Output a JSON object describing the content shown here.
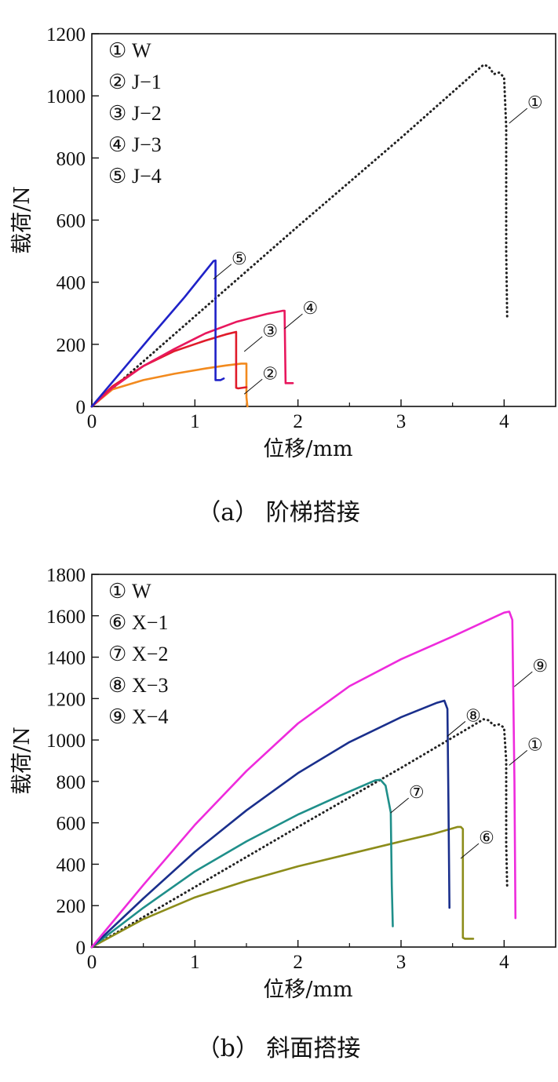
{
  "chart_data": [
    {
      "type": "line",
      "caption": "（a） 阶梯搭接",
      "xlabel": "位移/mm",
      "ylabel": "载荷/N",
      "xlim": [
        0,
        4.5
      ],
      "ylim": [
        0,
        1200
      ],
      "xticks": [
        0,
        1,
        2,
        3,
        4
      ],
      "yticks": [
        0,
        200,
        400,
        600,
        800,
        1000,
        1200
      ],
      "grid": false,
      "legend_position": "top-left",
      "legend": [
        {
          "marker": "①",
          "label": "W"
        },
        {
          "marker": "②",
          "label": "J−1"
        },
        {
          "marker": "③",
          "label": "J−2"
        },
        {
          "marker": "④",
          "label": "J−3"
        },
        {
          "marker": "⑤",
          "label": "J−4"
        }
      ],
      "series": [
        {
          "name": "W",
          "marker": "①",
          "color": "#222222",
          "style": "dotted",
          "x": [
            0,
            1,
            2,
            3,
            3.8,
            3.85,
            3.9,
            3.95,
            4.0,
            4.02,
            4.02,
            4.03
          ],
          "y": [
            0,
            290,
            580,
            865,
            1100,
            1095,
            1070,
            1075,
            1060,
            900,
            500,
            280
          ]
        },
        {
          "name": "J−1",
          "marker": "②",
          "color": "#f28a1e",
          "style": "solid",
          "x": [
            0,
            0.2,
            0.5,
            0.8,
            1.1,
            1.3,
            1.45,
            1.5,
            1.5,
            1.51
          ],
          "y": [
            0,
            55,
            85,
            105,
            122,
            132,
            138,
            138,
            30,
            0
          ]
        },
        {
          "name": "J−2",
          "marker": "③",
          "color": "#e01b2a",
          "style": "solid",
          "x": [
            0,
            0.2,
            0.5,
            0.8,
            1.1,
            1.3,
            1.4,
            1.4,
            1.42,
            1.5
          ],
          "y": [
            0,
            65,
            130,
            178,
            212,
            232,
            240,
            60,
            58,
            62
          ]
        },
        {
          "name": "J−3",
          "marker": "④",
          "color": "#e8175d",
          "style": "solid",
          "x": [
            0,
            0.2,
            0.5,
            0.8,
            1.1,
            1.4,
            1.7,
            1.85,
            1.87,
            1.88,
            1.95
          ],
          "y": [
            0,
            60,
            130,
            185,
            235,
            272,
            298,
            308,
            308,
            75,
            75
          ]
        },
        {
          "name": "J−4",
          "marker": "⑤",
          "color": "#1f22c8",
          "style": "solid",
          "x": [
            0,
            0.3,
            0.6,
            0.9,
            1.18,
            1.2,
            1.2,
            1.25,
            1.28
          ],
          "y": [
            0,
            118,
            236,
            352,
            468,
            470,
            85,
            85,
            90
          ]
        }
      ],
      "annotations": [
        {
          "label": "①",
          "x": 4.3,
          "y": 980
        },
        {
          "label": "②",
          "x": 1.73,
          "y": 108
        },
        {
          "label": "③",
          "x": 1.73,
          "y": 245
        },
        {
          "label": "④",
          "x": 2.12,
          "y": 318
        },
        {
          "label": "⑤",
          "x": 1.43,
          "y": 478
        }
      ]
    },
    {
      "type": "line",
      "caption": "（b） 斜面搭接",
      "xlabel": "位移/mm",
      "ylabel": "载荷/N",
      "xlim": [
        0,
        4.5
      ],
      "ylim": [
        0,
        1800
      ],
      "xticks": [
        0,
        1,
        2,
        3,
        4
      ],
      "yticks": [
        0,
        200,
        400,
        600,
        800,
        1000,
        1200,
        1400,
        1600,
        1800
      ],
      "grid": false,
      "legend_position": "top-left",
      "legend": [
        {
          "marker": "①",
          "label": "W"
        },
        {
          "marker": "⑥",
          "label": "X−1"
        },
        {
          "marker": "⑦",
          "label": "X−2"
        },
        {
          "marker": "⑧",
          "label": "X−3"
        },
        {
          "marker": "⑨",
          "label": "X−4"
        }
      ],
      "series": [
        {
          "name": "W",
          "marker": "①",
          "color": "#222222",
          "style": "dotted",
          "x": [
            0,
            1,
            2,
            3,
            3.8,
            3.85,
            3.9,
            3.95,
            4.0,
            4.02,
            4.02,
            4.03
          ],
          "y": [
            0,
            290,
            580,
            865,
            1100,
            1095,
            1070,
            1075,
            1060,
            900,
            500,
            280
          ]
        },
        {
          "name": "X−1",
          "marker": "⑥",
          "color": "#8c8c1a",
          "style": "solid",
          "x": [
            0,
            0.5,
            1.0,
            1.5,
            2.0,
            2.5,
            3.0,
            3.3,
            3.55,
            3.58,
            3.6,
            3.6,
            3.62,
            3.7
          ],
          "y": [
            0,
            135,
            240,
            320,
            390,
            450,
            510,
            545,
            580,
            580,
            570,
            45,
            40,
            40
          ]
        },
        {
          "name": "X−2",
          "marker": "⑦",
          "color": "#1f8f8a",
          "style": "solid",
          "x": [
            0,
            0.5,
            1.0,
            1.5,
            2.0,
            2.4,
            2.75,
            2.8,
            2.85,
            2.9,
            2.91,
            2.92
          ],
          "y": [
            0,
            190,
            365,
            510,
            640,
            730,
            805,
            808,
            780,
            650,
            300,
            100
          ]
        },
        {
          "name": "X−3",
          "marker": "⑧",
          "color": "#1a2f8c",
          "style": "solid",
          "x": [
            0,
            0.5,
            1.0,
            1.5,
            2.0,
            2.5,
            3.0,
            3.35,
            3.42,
            3.45,
            3.46,
            3.47
          ],
          "y": [
            0,
            235,
            460,
            660,
            840,
            990,
            1110,
            1180,
            1190,
            1150,
            700,
            190
          ]
        },
        {
          "name": "X−4",
          "marker": "⑨",
          "color": "#ee2bdc",
          "style": "solid",
          "x": [
            0,
            0.5,
            1.0,
            1.5,
            2.0,
            2.5,
            3.0,
            3.5,
            4.0,
            4.05,
            4.08,
            4.1,
            4.11
          ],
          "y": [
            0,
            300,
            590,
            850,
            1080,
            1260,
            1390,
            1500,
            1615,
            1620,
            1580,
            800,
            140
          ]
        }
      ],
      "annotations": [
        {
          "label": "①",
          "x": 4.3,
          "y": 980
        },
        {
          "label": "⑥",
          "x": 3.83,
          "y": 530
        },
        {
          "label": "⑦",
          "x": 3.15,
          "y": 750
        },
        {
          "label": "⑧",
          "x": 3.7,
          "y": 1120
        },
        {
          "label": "⑨",
          "x": 4.35,
          "y": 1360
        }
      ]
    }
  ]
}
